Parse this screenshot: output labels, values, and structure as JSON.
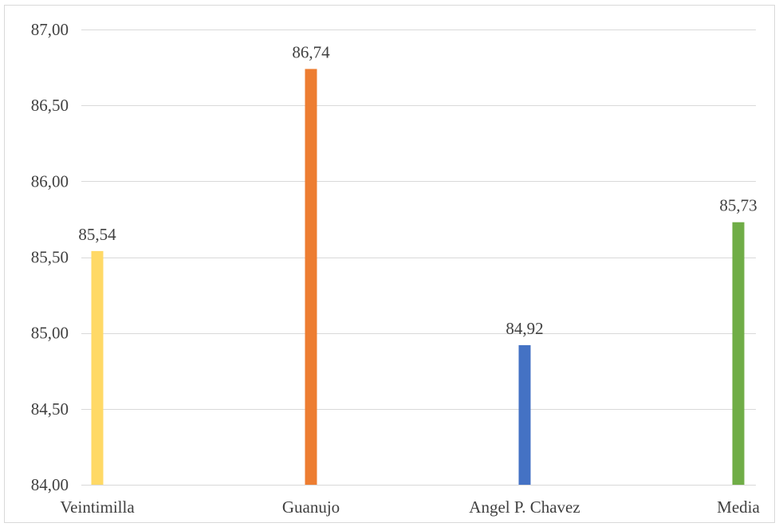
{
  "chart_data": {
    "type": "bar",
    "categories": [
      "Veintimilla",
      "Guanujo",
      "Angel P. Chavez",
      "Media"
    ],
    "values": [
      85.54,
      86.74,
      84.92,
      85.73
    ],
    "data_labels": [
      "85,54",
      "86,74",
      "84,92",
      "85,73"
    ],
    "colors": [
      "#FFD966",
      "#ED7D31",
      "#4472C4",
      "#70AD47"
    ],
    "ylim": [
      84.0,
      87.0
    ],
    "yticks": [
      84.0,
      84.5,
      85.0,
      85.5,
      86.0,
      86.5,
      87.0
    ],
    "ytick_labels": [
      "84,00",
      "84,50",
      "85,00",
      "85,50",
      "86,00",
      "86,50",
      "87,00"
    ],
    "grid": true,
    "gridline_color": "#d9d9d9",
    "title": "",
    "xlabel": "",
    "ylabel": ""
  }
}
